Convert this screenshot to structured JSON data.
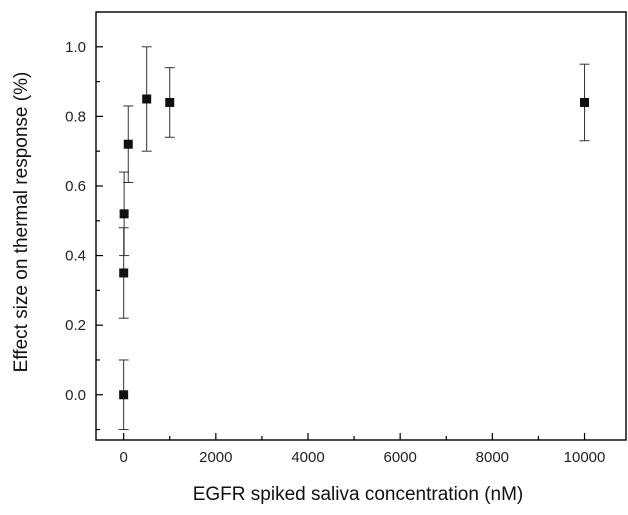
{
  "chart_data": {
    "type": "scatter",
    "title": "",
    "xlabel": "EGFR spiked saliva concentration (nM)",
    "ylabel": "Effect size on thermal response (%)",
    "xlim": [
      -600,
      10900
    ],
    "ylim": [
      -0.13,
      1.1
    ],
    "xticks": [
      0,
      2000,
      4000,
      6000,
      8000,
      10000
    ],
    "yticks": [
      0.0,
      0.2,
      0.4,
      0.6,
      0.8,
      1.0
    ],
    "xtick_labels": [
      "0",
      "2000",
      "4000",
      "6000",
      "8000",
      "10000"
    ],
    "ytick_labels": [
      "0.0",
      "0.2",
      "0.4",
      "0.6",
      "0.8",
      "1.0"
    ],
    "grid": false,
    "marker": "square",
    "marker_color": "#111111",
    "points": [
      {
        "x": 0,
        "y": 0.0,
        "err_low": 0.1,
        "err_high": 0.1
      },
      {
        "x": 1,
        "y": 0.35,
        "err_low": 0.13,
        "err_high": 0.13
      },
      {
        "x": 10,
        "y": 0.52,
        "err_low": 0.12,
        "err_high": 0.12
      },
      {
        "x": 100,
        "y": 0.72,
        "err_low": 0.11,
        "err_high": 0.11
      },
      {
        "x": 500,
        "y": 0.85,
        "err_low": 0.15,
        "err_high": 0.15
      },
      {
        "x": 1000,
        "y": 0.84,
        "err_low": 0.1,
        "err_high": 0.1
      },
      {
        "x": 10000,
        "y": 0.84,
        "err_low": 0.11,
        "err_high": 0.11
      }
    ]
  }
}
